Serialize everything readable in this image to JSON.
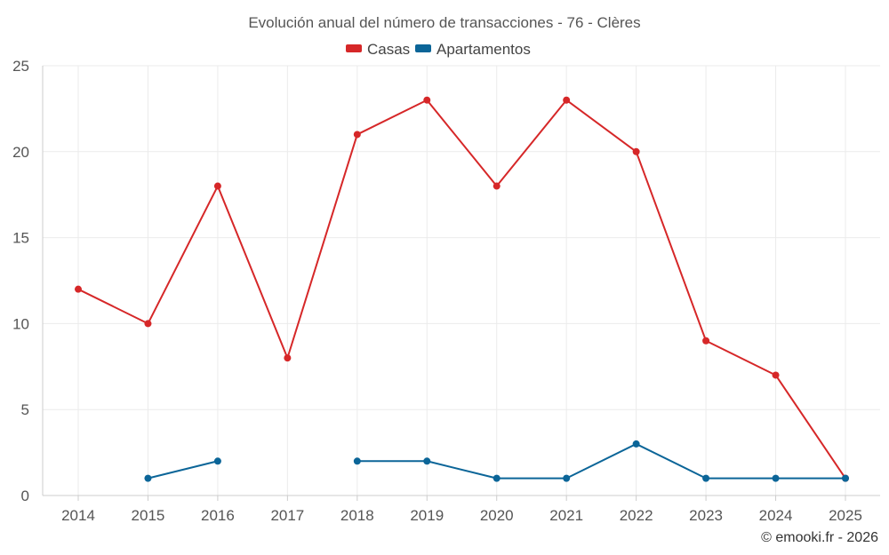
{
  "chart_data": {
    "type": "line",
    "title": "Evolución anual del número de transacciones - 76 - Clères",
    "categories": [
      "2014",
      "2015",
      "2016",
      "2017",
      "2018",
      "2019",
      "2020",
      "2021",
      "2022",
      "2023",
      "2024",
      "2025"
    ],
    "ylim": [
      0,
      25
    ],
    "yticks": [
      0,
      5,
      10,
      15,
      20,
      25
    ],
    "grid": true,
    "legend_position": "top-center",
    "series": [
      {
        "name": "Casas",
        "color": "#d62728",
        "values": [
          12,
          10,
          18,
          8,
          21,
          23,
          18,
          23,
          20,
          9,
          7,
          1
        ]
      },
      {
        "name": "Apartamentos",
        "color": "#0b6598",
        "values": [
          null,
          1,
          2,
          null,
          2,
          2,
          1,
          1,
          3,
          1,
          1,
          1
        ]
      }
    ],
    "credit": "© emooki.fr - 2026"
  }
}
